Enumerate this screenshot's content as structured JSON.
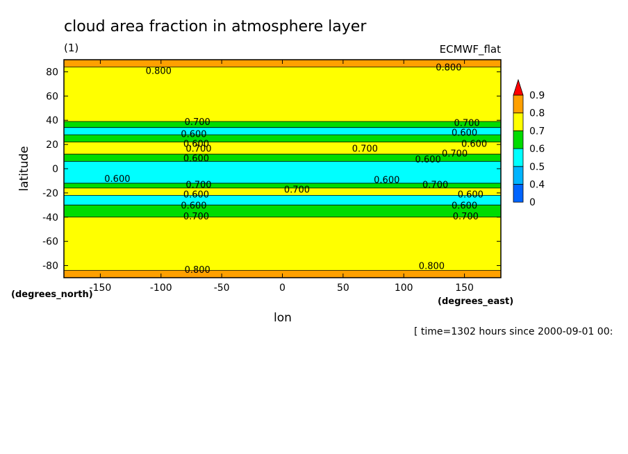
{
  "chart_data": {
    "type": "contour",
    "title": "cloud area fraction in atmosphere layer",
    "units": "(1)",
    "dataset": "ECMWF_flat",
    "xlabel": "lon",
    "ylabel": "latitude",
    "x_units": "(degrees_east)",
    "y_units": "(degrees_north)",
    "footer": "[ time=1302 hours since 2000-09-01 00:",
    "xlim": [
      -180,
      180
    ],
    "ylim": [
      -90,
      90
    ],
    "x_ticks": [
      -150,
      -100,
      -50,
      0,
      50,
      100,
      150
    ],
    "y_ticks": [
      80,
      60,
      40,
      20,
      0,
      -20,
      -40,
      -60,
      -80
    ],
    "levels": [
      0,
      0.4,
      0.5,
      0.6,
      0.7,
      0.8,
      0.9
    ],
    "colorbar": [
      {
        "from": 0,
        "to": 0.4,
        "color": "#0064ff"
      },
      {
        "from": 0.4,
        "to": 0.5,
        "color": "#00b4ff"
      },
      {
        "from": 0.5,
        "to": 0.6,
        "color": "#00ffff"
      },
      {
        "from": 0.6,
        "to": 0.7,
        "color": "#00dc00"
      },
      {
        "from": 0.7,
        "to": 0.8,
        "color": "#ffff00"
      },
      {
        "from": 0.8,
        "to": 0.9,
        "color": "#ffa000"
      },
      {
        "from": 0.9,
        "to": null,
        "color": "#ff0000"
      }
    ],
    "bands": [
      {
        "lat_top": 90,
        "lat_bottom": 84,
        "level": 0.8,
        "color": "#ffa000"
      },
      {
        "lat_top": 84,
        "lat_bottom": 39,
        "level": 0.7,
        "color": "#ffff00"
      },
      {
        "lat_top": 39,
        "lat_bottom": 34,
        "level": 0.6,
        "color": "#00dc00"
      },
      {
        "lat_top": 34,
        "lat_bottom": 28,
        "level": 0.5,
        "color": "#00ffff"
      },
      {
        "lat_top": 28,
        "lat_bottom": 22,
        "level": 0.6,
        "color": "#00dc00"
      },
      {
        "lat_top": 22,
        "lat_bottom": 12,
        "level": 0.7,
        "color": "#ffff00"
      },
      {
        "lat_top": 12,
        "lat_bottom": 6,
        "level": 0.6,
        "color": "#00dc00"
      },
      {
        "lat_top": 6,
        "lat_bottom": -12,
        "level": 0.5,
        "color": "#00ffff"
      },
      {
        "lat_top": -12,
        "lat_bottom": -16,
        "level": 0.6,
        "color": "#00dc00"
      },
      {
        "lat_top": -16,
        "lat_bottom": -22,
        "level": 0.7,
        "color": "#ffff00"
      },
      {
        "lat_top": -22,
        "lat_bottom": -30,
        "level": 0.5,
        "color": "#00ffff"
      },
      {
        "lat_top": -30,
        "lat_bottom": -40,
        "level": 0.6,
        "color": "#00dc00"
      },
      {
        "lat_top": -40,
        "lat_bottom": -84,
        "level": 0.7,
        "color": "#ffff00"
      },
      {
        "lat_top": -84,
        "lat_bottom": -90,
        "level": 0.8,
        "color": "#ffa000"
      }
    ],
    "contour_labels": [
      {
        "text": "0.800",
        "lon": -102,
        "lat": 81
      },
      {
        "text": "0.800",
        "lon": 137,
        "lat": 84
      },
      {
        "text": "0.700",
        "lon": -70,
        "lat": 39
      },
      {
        "text": "0.700",
        "lon": 152,
        "lat": 38
      },
      {
        "text": "0.600",
        "lon": -73,
        "lat": 29
      },
      {
        "text": "0.600",
        "lon": 150,
        "lat": 30
      },
      {
        "text": "0.600",
        "lon": -71,
        "lat": 21
      },
      {
        "text": "0.700",
        "lon": -69,
        "lat": 17
      },
      {
        "text": "0.700",
        "lon": 68,
        "lat": 17
      },
      {
        "text": "0.600",
        "lon": 158,
        "lat": 21
      },
      {
        "text": "0.700",
        "lon": 142,
        "lat": 13
      },
      {
        "text": "0.600",
        "lon": -71,
        "lat": 9
      },
      {
        "text": "0.600",
        "lon": 120,
        "lat": 8
      },
      {
        "text": "0.600",
        "lon": -136,
        "lat": -8
      },
      {
        "text": "0.600",
        "lon": 86,
        "lat": -9
      },
      {
        "text": "0.700",
        "lon": -69,
        "lat": -13
      },
      {
        "text": "0.700",
        "lon": 12,
        "lat": -17
      },
      {
        "text": "0.700",
        "lon": 126,
        "lat": -13
      },
      {
        "text": "0.600",
        "lon": -71,
        "lat": -21
      },
      {
        "text": "0.600",
        "lon": 155,
        "lat": -21
      },
      {
        "text": "0.600",
        "lon": -73,
        "lat": -30
      },
      {
        "text": "0.600",
        "lon": 150,
        "lat": -30
      },
      {
        "text": "0.700",
        "lon": -71,
        "lat": -39
      },
      {
        "text": "0.700",
        "lon": 151,
        "lat": -39
      },
      {
        "text": "0.800",
        "lon": -70,
        "lat": -83
      },
      {
        "text": "0.800",
        "lon": 123,
        "lat": -80
      }
    ]
  }
}
